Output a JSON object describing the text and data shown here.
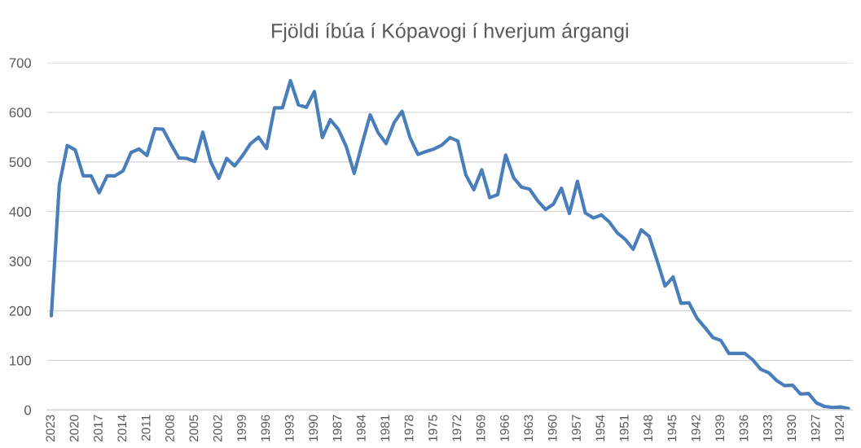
{
  "chart_data": {
    "type": "line",
    "title": "Fjöldi íbúa í Kópavogi í hverjum árgangi",
    "categories": [
      "2023",
      null,
      null,
      "2020",
      null,
      null,
      "2017",
      null,
      null,
      "2014",
      null,
      null,
      "2011",
      null,
      null,
      "2008",
      null,
      null,
      "2005",
      null,
      null,
      "2002",
      null,
      null,
      "1999",
      null,
      null,
      "1996",
      null,
      null,
      "1993",
      null,
      null,
      "1990",
      null,
      null,
      "1987",
      null,
      null,
      "1984",
      null,
      null,
      "1981",
      null,
      null,
      "1978",
      null,
      null,
      "1975",
      null,
      null,
      "1972",
      null,
      null,
      "1969",
      null,
      null,
      "1966",
      null,
      null,
      "1963",
      null,
      null,
      "1960",
      null,
      null,
      "1957",
      null,
      null,
      "1954",
      null,
      null,
      "1951",
      null,
      null,
      "1948",
      null,
      null,
      "1945",
      null,
      null,
      "1942",
      null,
      null,
      "1939",
      null,
      null,
      "1936",
      null,
      null,
      "1933",
      null,
      null,
      "1930",
      null,
      null,
      "1927",
      null,
      null,
      "1924",
      null
    ],
    "series": [
      {
        "color": "#4a7ebb",
        "values": [
          190,
          454,
          533,
          524,
          472,
          472,
          438,
          472,
          472,
          482,
          519,
          526,
          513,
          567,
          566,
          536,
          508,
          507,
          501,
          560,
          500,
          467,
          507,
          492,
          513,
          537,
          550,
          527,
          609,
          609,
          664,
          615,
          610,
          642,
          549,
          585,
          566,
          531,
          477,
          537,
          595,
          559,
          537,
          579,
          602,
          549,
          515,
          521,
          526,
          534,
          549,
          542,
          474,
          444,
          484,
          428,
          434,
          514,
          468,
          449,
          445,
          422,
          404,
          415,
          447,
          396,
          461,
          397,
          387,
          393,
          379,
          357,
          344,
          324,
          363,
          350,
          301,
          250,
          268,
          215,
          216,
          185,
          166,
          146,
          140,
          114,
          114,
          114,
          101,
          82,
          75,
          59,
          49,
          50,
          32,
          33,
          14,
          7,
          5,
          6,
          3
        ]
      }
    ],
    "ylim": [
      0,
      700
    ],
    "yticks": [
      0,
      100,
      200,
      300,
      400,
      500,
      600,
      700
    ],
    "grid": "y",
    "legend": false,
    "marker": "none",
    "line_style": "solid"
  }
}
